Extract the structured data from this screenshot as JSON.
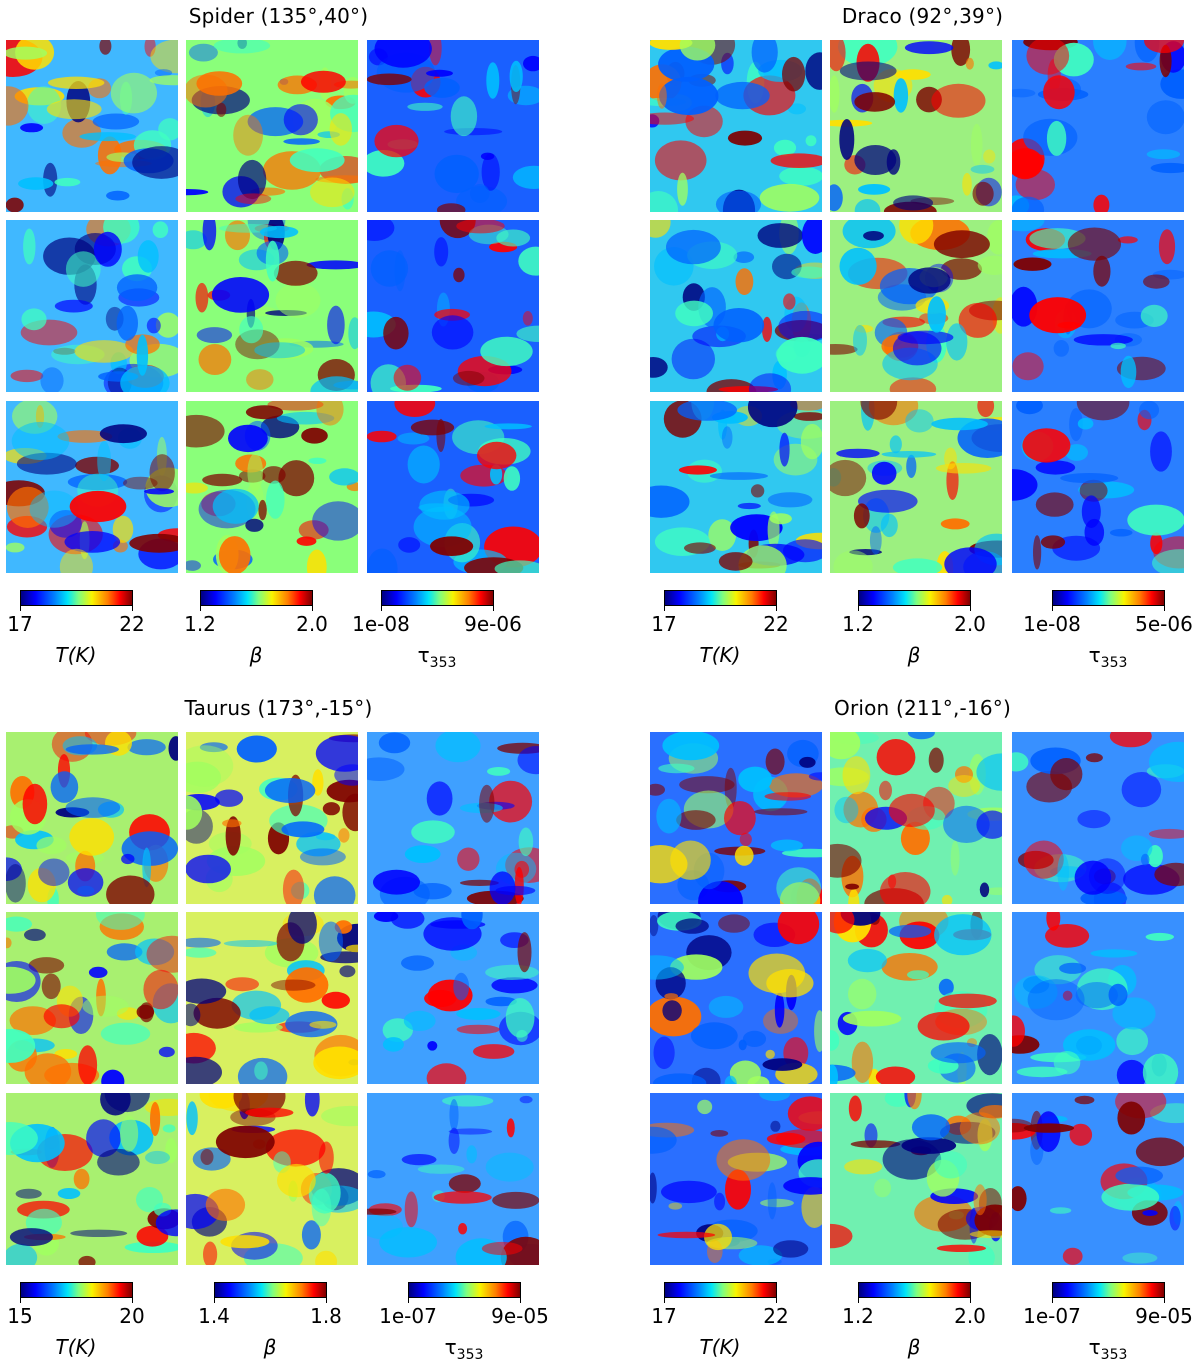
{
  "figure": {
    "quadrants": [
      {
        "id": "spider",
        "title": "Spider (135°,40°)",
        "colorbars": [
          {
            "label": "T(K)",
            "min": "17",
            "max": "22"
          },
          {
            "label": "β",
            "min": "1.2",
            "max": "2.0"
          },
          {
            "label": "τ353",
            "min": "1e-08",
            "max": "9e-06"
          }
        ]
      },
      {
        "id": "draco",
        "title": "Draco (92°,39°)",
        "colorbars": [
          {
            "label": "T(K)",
            "min": "17",
            "max": "22"
          },
          {
            "label": "β",
            "min": "1.2",
            "max": "2.0"
          },
          {
            "label": "τ353",
            "min": "1e-08",
            "max": "5e-06"
          }
        ]
      },
      {
        "id": "taurus",
        "title": "Taurus (173°,-15°)",
        "colorbars": [
          {
            "label": "T(K)",
            "min": "15",
            "max": "20"
          },
          {
            "label": "β",
            "min": "1.4",
            "max": "1.8"
          },
          {
            "label": "τ353",
            "min": "1e-07",
            "max": "9e-05"
          }
        ]
      },
      {
        "id": "orion",
        "title": "Orion (211°,-16°)",
        "colorbars": [
          {
            "label": "T(K)",
            "min": "17",
            "max": "22"
          },
          {
            "label": "β",
            "min": "1.2",
            "max": "2.0"
          },
          {
            "label": "τ353",
            "min": "1e-07",
            "max": "9e-05"
          }
        ]
      }
    ],
    "colors": {
      "jet_dark_blue": "#00007f",
      "jet_blue": "#0000ff",
      "jet_cyan": "#00e5f8",
      "jet_green": "#7fff7f",
      "jet_yellow": "#f8f500",
      "jet_red": "#ff0000",
      "jet_dark_red": "#7f0000"
    }
  }
}
